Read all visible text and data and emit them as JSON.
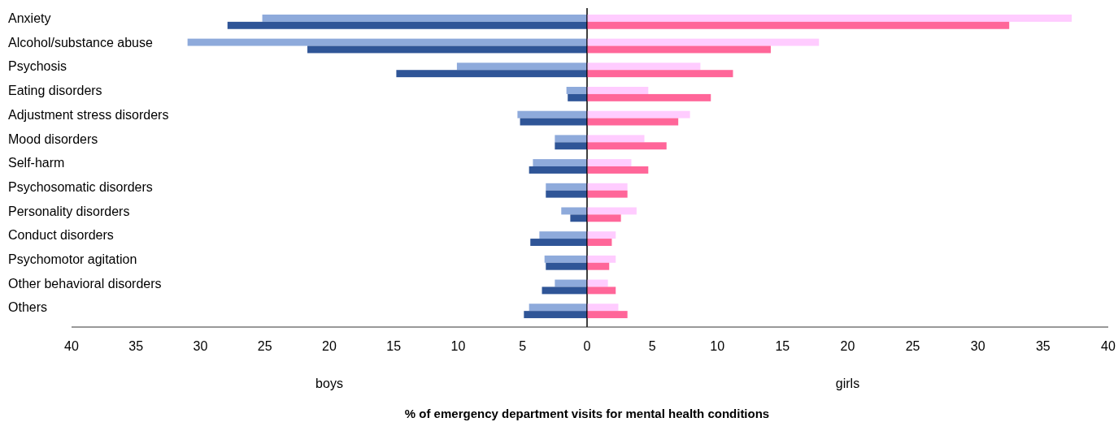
{
  "chart_data": [
    {
      "type": "bar",
      "orientation": "horizontal",
      "xlabel": "boys",
      "categories": [
        "Anxiety",
        "Alcohol/substance abuse",
        "Psychosis",
        "Eating disorders",
        "Adjustment stress disorders",
        "Mood disorders",
        "Self-harm",
        "Psychosomatic disorders",
        "Personality disorders",
        "Conduct disorders",
        "Psychomotor agitation",
        "Other behavioral disorders",
        "Others"
      ],
      "series": [
        {
          "color": "#8eaadb",
          "values": [
            25.2,
            31.0,
            10.1,
            1.6,
            5.4,
            2.5,
            4.2,
            3.2,
            2.0,
            3.7,
            3.3,
            2.5,
            4.5
          ]
        },
        {
          "color": "#2f5597",
          "values": [
            27.9,
            21.7,
            14.8,
            1.5,
            5.2,
            2.5,
            4.5,
            3.2,
            1.3,
            4.4,
            3.2,
            3.5,
            4.9
          ]
        }
      ],
      "xlim": [
        40,
        0
      ],
      "xticks": [
        40,
        35,
        30,
        25,
        20,
        15,
        10,
        5
      ],
      "annotations": [
        "% of emergency department visits for mental health conditions"
      ]
    },
    {
      "type": "bar",
      "orientation": "horizontal",
      "xlabel": "girls",
      "categories": [
        null,
        null,
        null,
        null,
        null,
        null,
        null,
        null,
        null,
        null,
        null,
        null,
        null
      ],
      "series": [
        {
          "color": "#ffccff",
          "values": [
            37.2,
            17.8,
            8.7,
            4.7,
            7.9,
            4.4,
            3.4,
            3.1,
            3.8,
            2.2,
            2.2,
            1.6,
            2.4
          ]
        },
        {
          "color": "#ff6699",
          "values": [
            32.4,
            14.1,
            11.2,
            9.5,
            7.0,
            6.1,
            4.7,
            3.1,
            2.6,
            1.9,
            1.7,
            2.2,
            3.1
          ]
        }
      ],
      "xlim": [
        0,
        40
      ],
      "xticks": [
        0,
        5,
        10,
        15,
        20,
        25,
        30,
        35,
        40
      ],
      "tick_labels": "x"
    }
  ]
}
